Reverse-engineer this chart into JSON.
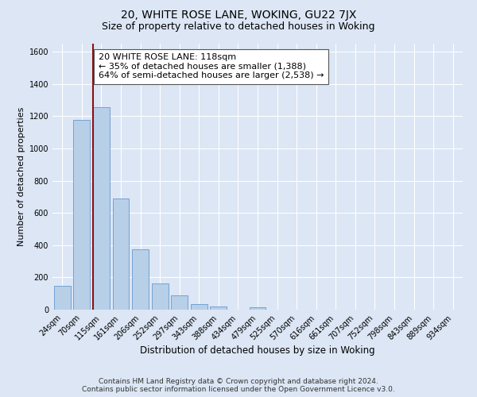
{
  "title": "20, WHITE ROSE LANE, WOKING, GU22 7JX",
  "subtitle": "Size of property relative to detached houses in Woking",
  "xlabel": "Distribution of detached houses by size in Woking",
  "ylabel": "Number of detached properties",
  "bar_labels": [
    "24sqm",
    "70sqm",
    "115sqm",
    "161sqm",
    "206sqm",
    "252sqm",
    "297sqm",
    "343sqm",
    "388sqm",
    "434sqm",
    "479sqm",
    "525sqm",
    "570sqm",
    "616sqm",
    "661sqm",
    "707sqm",
    "752sqm",
    "798sqm",
    "843sqm",
    "889sqm",
    "934sqm"
  ],
  "bar_values": [
    148,
    1175,
    1258,
    688,
    375,
    165,
    90,
    35,
    20,
    0,
    15,
    0,
    0,
    0,
    0,
    0,
    0,
    0,
    0,
    0,
    0
  ],
  "bar_color": "#b8cfe8",
  "bar_edge_color": "#6699cc",
  "highlight_line_color": "#8b1010",
  "annotation_text": "20 WHITE ROSE LANE: 118sqm\n← 35% of detached houses are smaller (1,388)\n64% of semi-detached houses are larger (2,538) →",
  "annotation_box_color": "#ffffff",
  "annotation_box_edge": "#555555",
  "ylim": [
    0,
    1650
  ],
  "yticks": [
    0,
    200,
    400,
    600,
    800,
    1000,
    1200,
    1400,
    1600
  ],
  "background_color": "#dce6f5",
  "plot_background": "#dce6f5",
  "footer_line1": "Contains HM Land Registry data © Crown copyright and database right 2024.",
  "footer_line2": "Contains public sector information licensed under the Open Government Licence v3.0.",
  "title_fontsize": 10,
  "subtitle_fontsize": 9,
  "xlabel_fontsize": 8.5,
  "ylabel_fontsize": 8,
  "tick_fontsize": 7,
  "annotation_fontsize": 8,
  "footer_fontsize": 6.5
}
